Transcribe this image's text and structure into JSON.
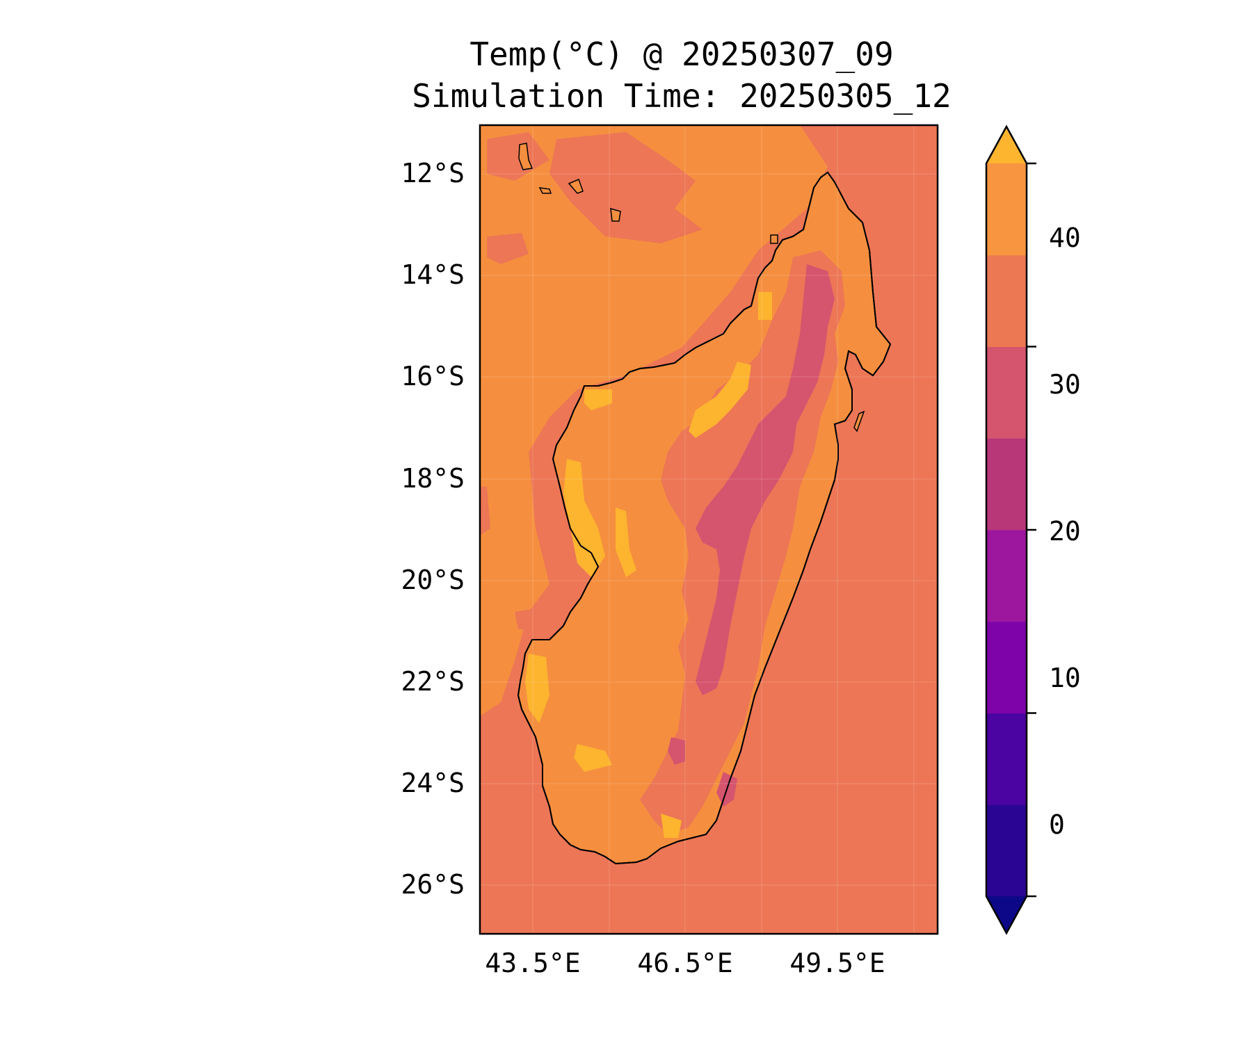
{
  "title": "Temp(°C) @ 20250307_09",
  "subtitle": "Simulation Time: 20250305_12",
  "map": {
    "region": "Madagascar",
    "background_color": "#ec7656",
    "ocean_near_coast_color": "#f58f3f",
    "lat_ticks": [
      "12°S",
      "14°S",
      "16°S",
      "18°S",
      "20°S",
      "22°S",
      "24°S",
      "26°S"
    ],
    "lon_ticks": [
      "43.5°E",
      "46.5°E",
      "49.5°E"
    ],
    "gridlines": true
  },
  "colorbar": {
    "ticks": [
      "0",
      "10",
      "20",
      "30",
      "40"
    ],
    "levels": [
      -5,
      0,
      5,
      10,
      15,
      20,
      25,
      30,
      35,
      40,
      45
    ],
    "colors": [
      "#0d0887",
      "#2a0593",
      "#4b03a1",
      "#7e03a8",
      "#9c179e",
      "#b73779",
      "#d5546e",
      "#ec7853",
      "#f89540",
      "#fdb42f",
      "#f0f921"
    ],
    "extend": "both"
  }
}
